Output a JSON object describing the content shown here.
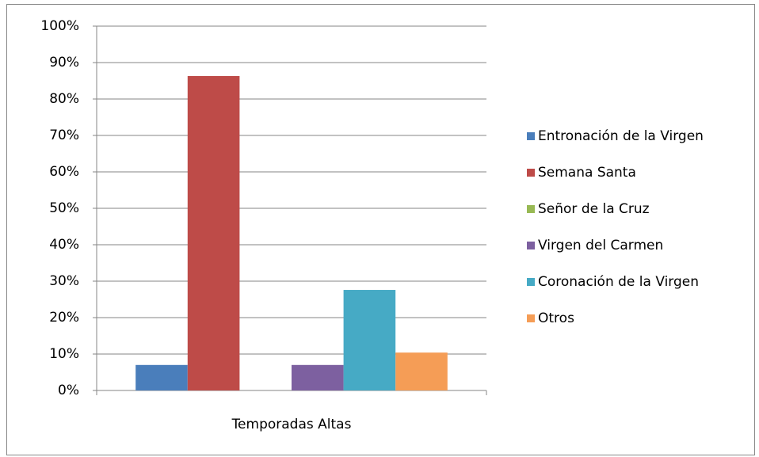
{
  "chart_data": {
    "type": "bar",
    "categories": [
      "Temporadas Altas"
    ],
    "series": [
      {
        "name": "Entronación de la Virgen",
        "color": "#4a7ebb",
        "values": [
          7.0
        ]
      },
      {
        "name": "Semana Santa",
        "color": "#be4b48",
        "values": [
          86.3
        ]
      },
      {
        "name": "Señor de la Cruz",
        "color": "#98b954",
        "values": [
          0
        ]
      },
      {
        "name": "Virgen del Carmen",
        "color": "#7d60a0",
        "values": [
          7.0
        ]
      },
      {
        "name": "Coronación de la Virgen",
        "color": "#46aac5",
        "values": [
          27.6
        ]
      },
      {
        "name": "Otros",
        "color": "#f59d56",
        "values": [
          10.4
        ]
      }
    ],
    "ylim": [
      0,
      100
    ],
    "yticks": [
      {
        "value": 0,
        "label": "0%"
      },
      {
        "value": 10,
        "label": "10%"
      },
      {
        "value": 20,
        "label": "20%"
      },
      {
        "value": 30,
        "label": "30%"
      },
      {
        "value": 40,
        "label": "40%"
      },
      {
        "value": 50,
        "label": "50%"
      },
      {
        "value": 60,
        "label": "60%"
      },
      {
        "value": 70,
        "label": "70%"
      },
      {
        "value": 80,
        "label": "80%"
      },
      {
        "value": 90,
        "label": "90%"
      },
      {
        "value": 100,
        "label": "100%"
      }
    ],
    "grid": true,
    "legend": "right"
  }
}
